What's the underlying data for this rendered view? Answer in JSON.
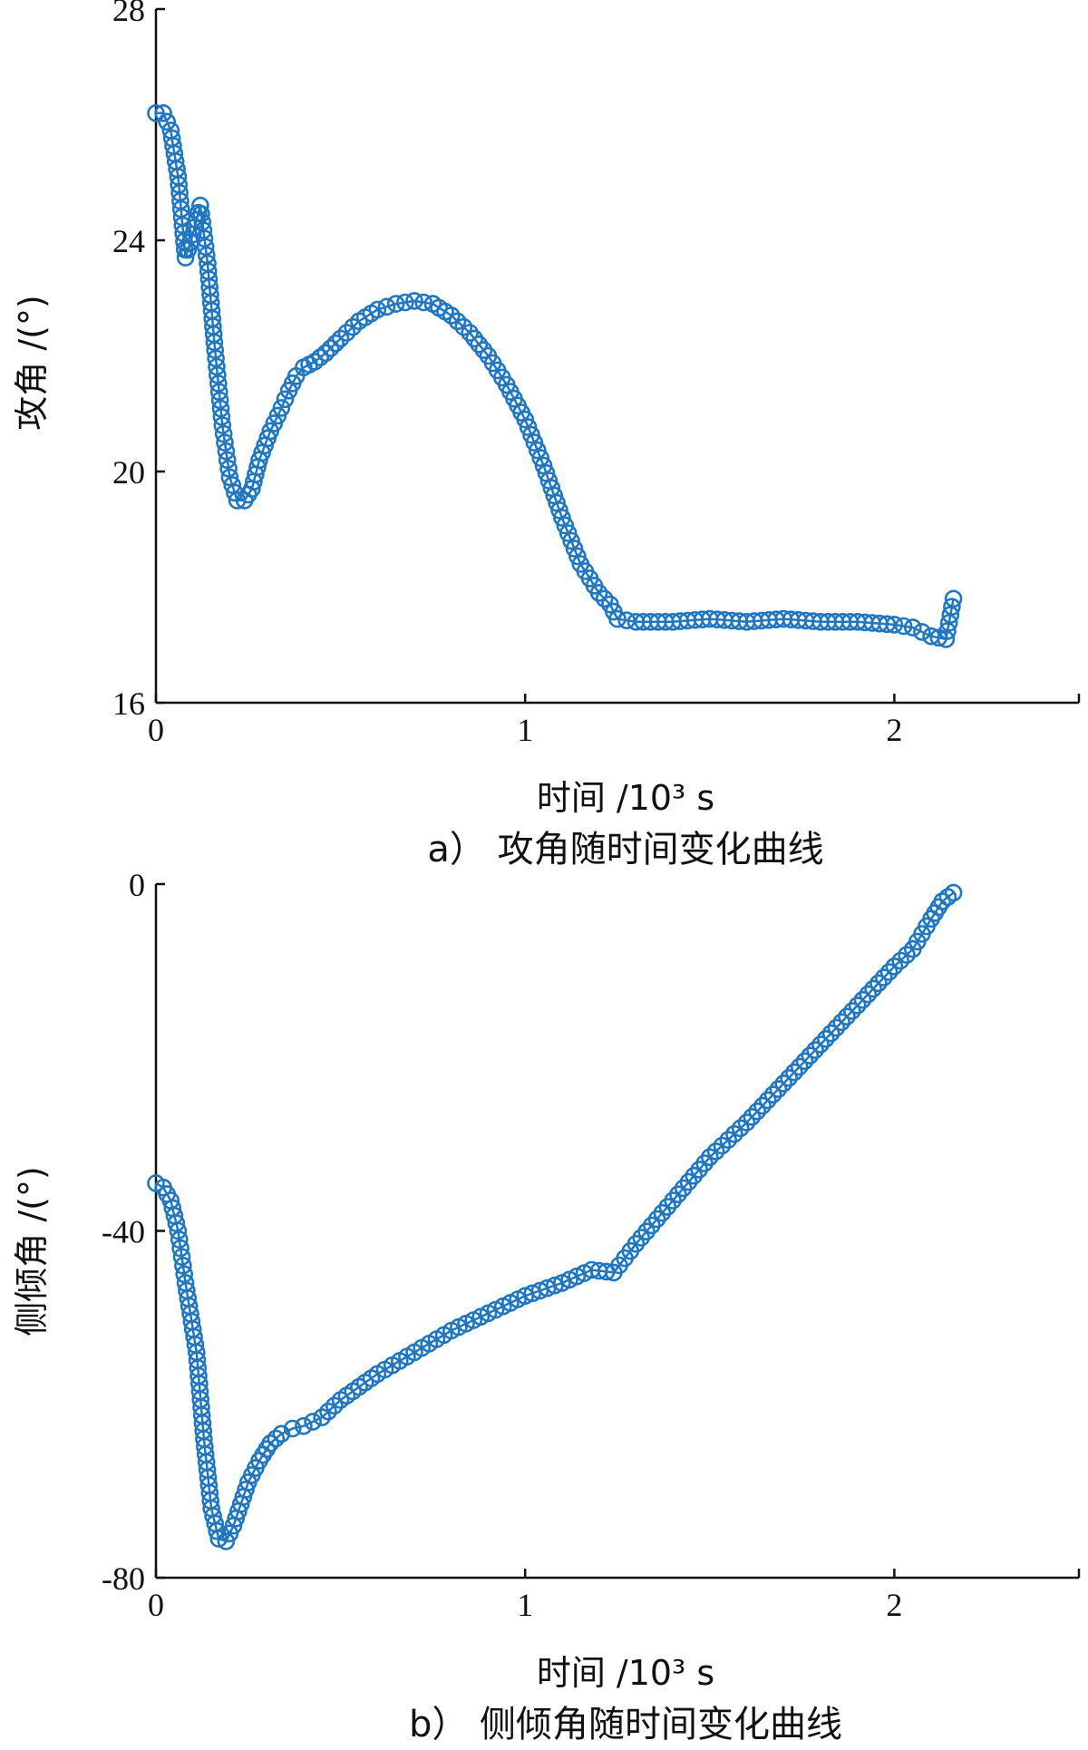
{
  "chart_data": [
    {
      "type": "line",
      "caption": "a） 攻角随时间变化曲线",
      "xlabel": "时间 /10³ s",
      "ylabel": "攻角 /(°)",
      "xlim": [
        0,
        2.5
      ],
      "ylim": [
        16,
        28
      ],
      "xticks": [
        0,
        1,
        2
      ],
      "yticks": [
        16,
        20,
        24,
        28
      ],
      "x_ticklabels": [
        "0",
        "1",
        "2"
      ],
      "y_ticklabels": [
        "16",
        "20",
        "24",
        "28"
      ],
      "series": [
        {
          "marker": "circle",
          "color": "#1f77c4",
          "points": [
            [
              0.0,
              26.2
            ],
            [
              0.02,
              26.2
            ],
            [
              0.04,
              25.9
            ],
            [
              0.06,
              25.1
            ],
            [
              0.08,
              23.7
            ],
            [
              0.1,
              24.1
            ],
            [
              0.12,
              24.6
            ],
            [
              0.14,
              23.6
            ],
            [
              0.16,
              22.1
            ],
            [
              0.18,
              20.8
            ],
            [
              0.2,
              19.9
            ],
            [
              0.22,
              19.5
            ],
            [
              0.24,
              19.5
            ],
            [
              0.26,
              19.7
            ],
            [
              0.28,
              20.2
            ],
            [
              0.31,
              20.7
            ],
            [
              0.34,
              21.1
            ],
            [
              0.36,
              21.4
            ],
            [
              0.38,
              21.65
            ],
            [
              0.4,
              21.8
            ],
            [
              0.43,
              21.9
            ],
            [
              0.46,
              22.05
            ],
            [
              0.5,
              22.3
            ],
            [
              0.55,
              22.6
            ],
            [
              0.6,
              22.8
            ],
            [
              0.65,
              22.9
            ],
            [
              0.7,
              22.95
            ],
            [
              0.75,
              22.9
            ],
            [
              0.8,
              22.7
            ],
            [
              0.85,
              22.4
            ],
            [
              0.9,
              22.0
            ],
            [
              0.95,
              21.5
            ],
            [
              1.0,
              20.9
            ],
            [
              1.05,
              20.1
            ],
            [
              1.1,
              19.2
            ],
            [
              1.15,
              18.4
            ],
            [
              1.2,
              17.9
            ],
            [
              1.23,
              17.7
            ],
            [
              1.25,
              17.45
            ],
            [
              1.3,
              17.4
            ],
            [
              1.4,
              17.4
            ],
            [
              1.5,
              17.45
            ],
            [
              1.6,
              17.4
            ],
            [
              1.7,
              17.45
            ],
            [
              1.8,
              17.4
            ],
            [
              1.9,
              17.4
            ],
            [
              2.0,
              17.35
            ],
            [
              2.05,
              17.3
            ],
            [
              2.1,
              17.15
            ],
            [
              2.14,
              17.1
            ],
            [
              2.16,
              17.8
            ]
          ]
        }
      ]
    },
    {
      "type": "line",
      "caption": "b） 侧倾角随时间变化曲线",
      "xlabel": "时间 /10³ s",
      "ylabel": "侧倾角 /(°)",
      "xlim": [
        0,
        2.5
      ],
      "ylim": [
        -80,
        0
      ],
      "xticks": [
        0,
        1,
        2
      ],
      "yticks": [
        -80,
        -40,
        0
      ],
      "x_ticklabels": [
        "0",
        "1",
        "2"
      ],
      "y_ticklabels": [
        "-80",
        "-40",
        "0"
      ],
      "series": [
        {
          "marker": "circle",
          "color": "#1f77c4",
          "points": [
            [
              0.0,
              -34.5
            ],
            [
              0.02,
              -35.0
            ],
            [
              0.04,
              -36.5
            ],
            [
              0.06,
              -40.0
            ],
            [
              0.08,
              -46.0
            ],
            [
              0.11,
              -54.0
            ],
            [
              0.13,
              -64.0
            ],
            [
              0.15,
              -72.0
            ],
            [
              0.17,
              -75.5
            ],
            [
              0.19,
              -75.8
            ],
            [
              0.21,
              -74.0
            ],
            [
              0.23,
              -71.5
            ],
            [
              0.25,
              -69.0
            ],
            [
              0.28,
              -66.5
            ],
            [
              0.31,
              -64.5
            ],
            [
              0.34,
              -63.4
            ],
            [
              0.37,
              -62.8
            ],
            [
              0.4,
              -62.5
            ],
            [
              0.45,
              -61.5
            ],
            [
              0.5,
              -59.5
            ],
            [
              0.6,
              -56.5
            ],
            [
              0.7,
              -54.0
            ],
            [
              0.8,
              -51.5
            ],
            [
              0.9,
              -49.5
            ],
            [
              1.0,
              -47.5
            ],
            [
              1.1,
              -46.0
            ],
            [
              1.18,
              -44.5
            ],
            [
              1.24,
              -44.8
            ],
            [
              1.3,
              -41.5
            ],
            [
              1.4,
              -36.5
            ],
            [
              1.5,
              -31.5
            ],
            [
              1.6,
              -27.5
            ],
            [
              1.7,
              -23.0
            ],
            [
              1.8,
              -18.5
            ],
            [
              1.9,
              -14.0
            ],
            [
              2.0,
              -9.5
            ],
            [
              2.05,
              -7.5
            ],
            [
              2.1,
              -4.0
            ],
            [
              2.13,
              -2.0
            ],
            [
              2.16,
              -1.0
            ]
          ]
        }
      ]
    }
  ]
}
